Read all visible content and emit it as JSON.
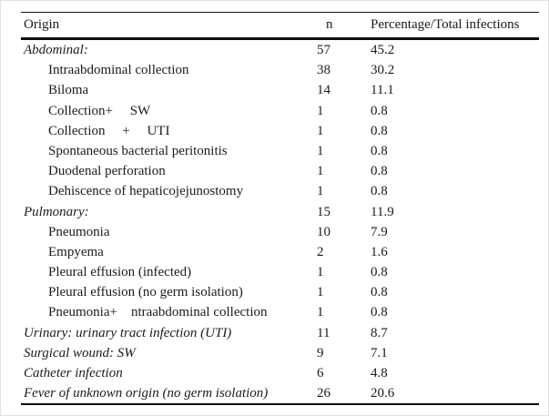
{
  "table": {
    "columns": {
      "origin": "Origin",
      "n": "n",
      "pct": "Percentage/Total infections"
    },
    "rows": [
      {
        "label": "Abdominal:",
        "n": "57",
        "pct": "45.2",
        "style": "category"
      },
      {
        "label": "Intraabdominal collection",
        "n": "38",
        "pct": "30.2",
        "style": "sub"
      },
      {
        "label": "Biloma",
        "n": "14",
        "pct": "11.1",
        "style": "sub"
      },
      {
        "label": "Collection+     SW",
        "n": "1",
        "pct": "0.8",
        "style": "sub"
      },
      {
        "label": "Collection     +     UTI",
        "n": "1",
        "pct": "0.8",
        "style": "sub"
      },
      {
        "label": "Spontaneous bacterial peritonitis",
        "n": "1",
        "pct": "0.8",
        "style": "sub"
      },
      {
        "label": "Duodenal perforation",
        "n": "1",
        "pct": "0.8",
        "style": "sub"
      },
      {
        "label": "Dehiscence of hepaticojejunostomy",
        "n": "1",
        "pct": "0.8",
        "style": "sub"
      },
      {
        "label": "Pulmonary:",
        "n": "15",
        "pct": "11.9",
        "style": "category"
      },
      {
        "label": "Pneumonia",
        "n": "10",
        "pct": "7.9",
        "style": "sub"
      },
      {
        "label": "Empyema",
        "n": "2",
        "pct": "1.6",
        "style": "sub"
      },
      {
        "label": "Pleural effusion (infected)",
        "n": "1",
        "pct": "0.8",
        "style": "sub"
      },
      {
        "label": "Pleural effusion (no germ isolation)",
        "n": "1",
        "pct": "0.8",
        "style": "sub"
      },
      {
        "label": "Pneumonia+    ntraabdominal collection",
        "n": "1",
        "pct": "0.8",
        "style": "sub"
      },
      {
        "label": "Urinary: urinary tract infection (UTI)",
        "n": "11",
        "pct": "8.7",
        "style": "category"
      },
      {
        "label": "Surgical wound: SW",
        "n": "9",
        "pct": "7.1",
        "style": "category"
      },
      {
        "label": "Catheter infection",
        "n": "6",
        "pct": "4.8",
        "style": "category"
      },
      {
        "label": "Fever of unknown origin (no germ isolation)",
        "n": "26",
        "pct": "20.6",
        "style": "category"
      }
    ]
  }
}
